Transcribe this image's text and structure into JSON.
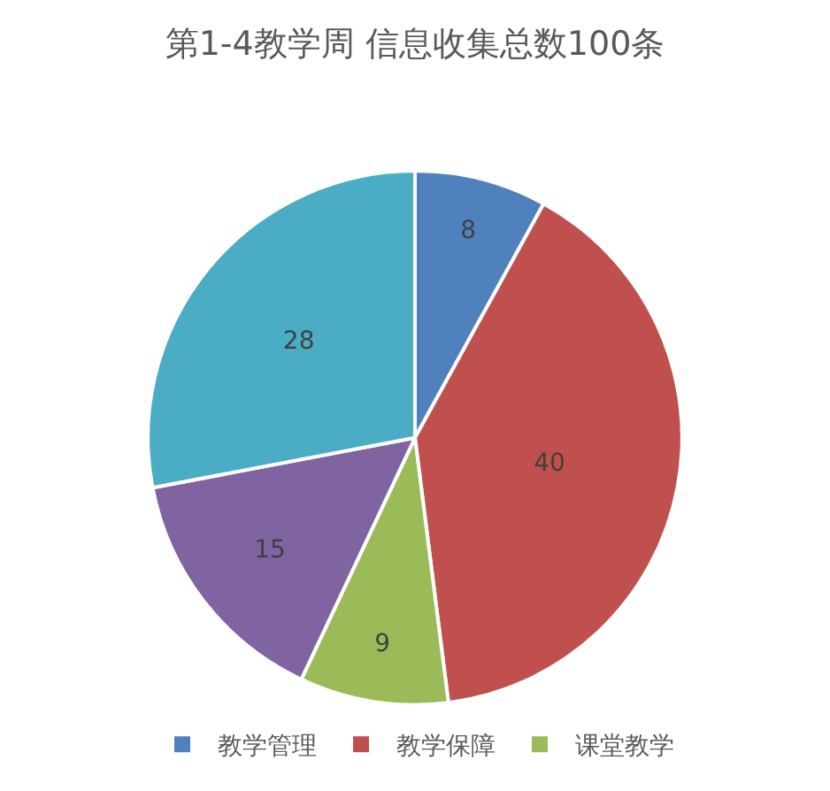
{
  "chart_data": {
    "type": "pie",
    "title": "第1-4教学周 信息收集总数100条",
    "categories": [
      "教学管理",
      "教学保障",
      "课堂教学",
      null,
      null
    ],
    "values": [
      8,
      40,
      9,
      15,
      28
    ],
    "colors": [
      "#4f81bd",
      "#c0504d",
      "#9bbb59",
      "#8064a2",
      "#4bacc6"
    ],
    "data_labels": true,
    "legend": "bottom"
  }
}
